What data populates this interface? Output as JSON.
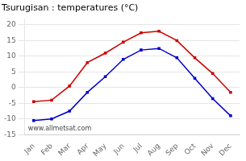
{
  "chart_data": {
    "type": "line",
    "title": "Tsurugisan : temperatures (°C)",
    "annotations": [
      "www.allmetsat.com"
    ],
    "categories": [
      "Jan",
      "Feb",
      "Mar",
      "Apr",
      "May",
      "Jun",
      "Jul",
      "Aug",
      "Sep",
      "Oct",
      "Nov",
      "Dec"
    ],
    "series": [
      {
        "color": "#cc0000",
        "values": [
          -4.5,
          -4.0,
          0.5,
          8.0,
          11.0,
          14.5,
          17.5,
          18.0,
          15.0,
          9.5,
          4.5,
          -1.5
        ]
      },
      {
        "color": "#0000cc",
        "values": [
          -10.5,
          -10.0,
          -7.5,
          -1.5,
          3.5,
          9.0,
          12.0,
          12.5,
          9.5,
          3.0,
          -3.5,
          -9.0
        ]
      }
    ],
    "ylim": [
      -15,
      22
    ],
    "yticks": [
      -15,
      -10,
      -5,
      0,
      5,
      10,
      15,
      20
    ],
    "grid": "y",
    "marker": "square"
  }
}
